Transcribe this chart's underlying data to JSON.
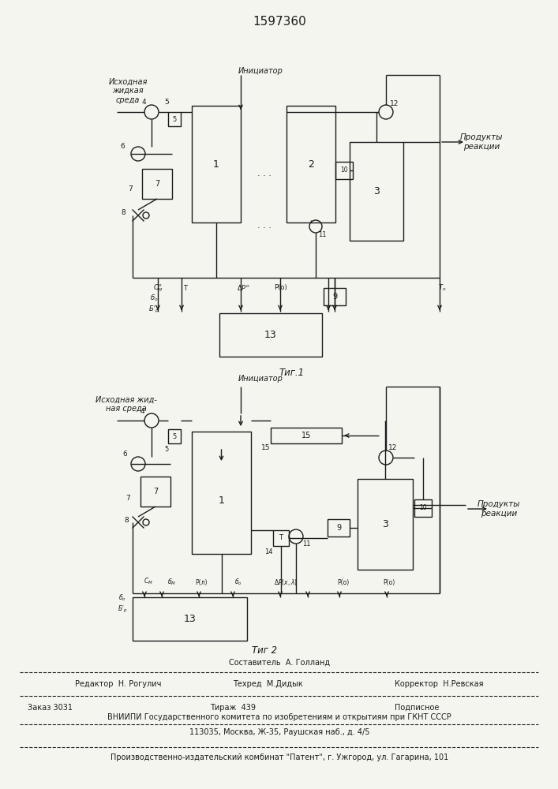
{
  "title": "1597360",
  "bg_color": "#f5f5f0",
  "line_color": "#1a1a1a",
  "fig1_label": "Τиг.1",
  "fig2_label": "Τиг 2",
  "label_isxodnaya1": "Исходная\nжидкая\nсреда",
  "label_initiator1": "Инициатор",
  "label_produkty1": "Продукты\nреакции",
  "label_isxodnaya2": "Исходная жид-\nная среда",
  "label_initiator2": "Инициатор",
  "label_produkty2": "Продукты\nреакции",
  "footer_line1": "Составитель  А. Голланд",
  "footer_left2": "Редактор  Н. Рогулич",
  "footer_mid2": "Техред  М.Дидык",
  "footer_right2": "Корректор  Н.Ревская",
  "footer_left3": "Заказ 3031",
  "footer_mid3": "Тираж  439",
  "footer_right3": "Подписное",
  "footer_line4": "ВНИИПИ Государственного комитета по изобретениям и открытиям при ГКНТ СССР",
  "footer_line5": "113035, Москва, Ж-35, Раушская наб., д. 4/5",
  "footer_line6": "Производственно-издательский комбинат \"Патент\", г. Ужгород, ул. Гагарина, 101"
}
